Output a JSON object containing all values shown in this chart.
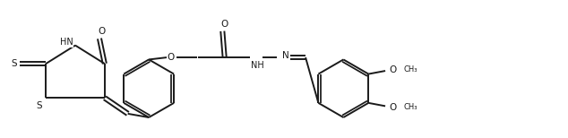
{
  "bg_color": "#ffffff",
  "line_color": "#1a1a1a",
  "line_width": 1.4,
  "font_size": 7.5,
  "figsize": [
    6.34,
    1.54
  ],
  "dpi": 100,
  "xlim": [
    0,
    10.5
  ],
  "ylim": [
    0.2,
    2.8
  ]
}
